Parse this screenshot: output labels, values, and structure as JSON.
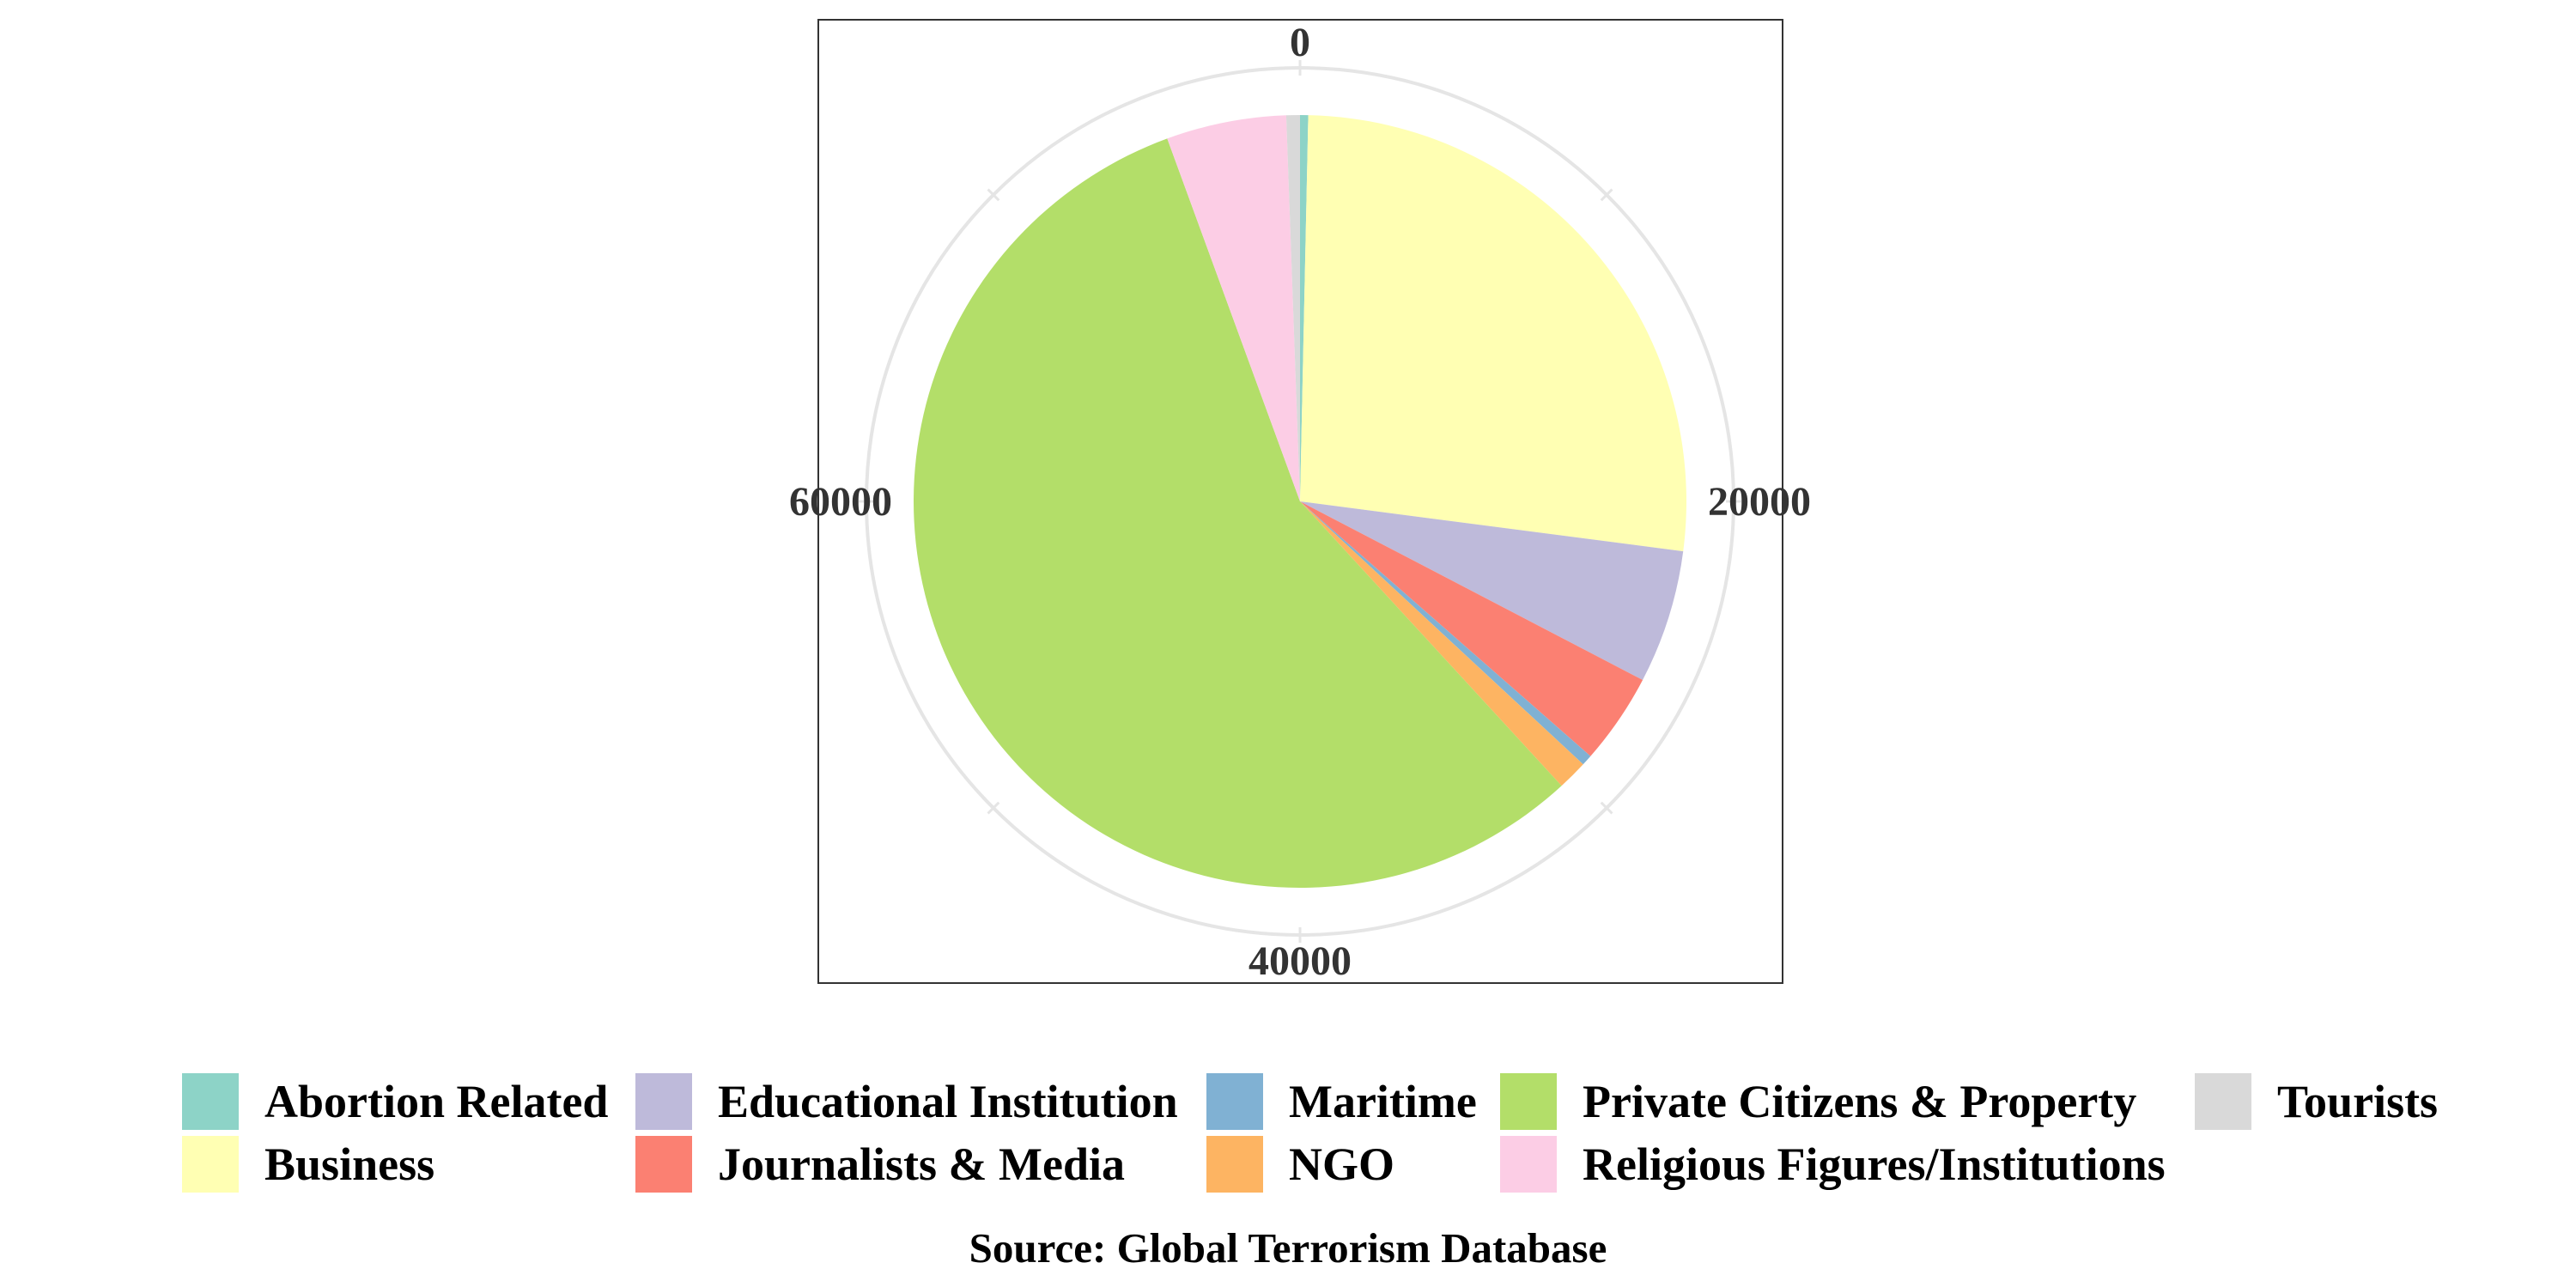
{
  "chart_data": {
    "type": "pie",
    "coord": "polar",
    "radial_axis": {
      "max": 80000,
      "ticks": [
        0,
        20000,
        40000,
        60000
      ]
    },
    "grid": true,
    "legend_position": "bottom",
    "categories": [
      "Abortion Related",
      "Business",
      "Educational Institution",
      "Journalists & Media",
      "Maritime",
      "NGO",
      "Private Citizens & Property",
      "Religious Figures/Institutions",
      "Tourists"
    ],
    "values": [
      263,
      20669,
      4322,
      2948,
      351,
      970,
      43511,
      3880,
      440
    ],
    "colors": [
      "#8DD3C7",
      "#FFFFB3",
      "#BEBADA",
      "#FB8072",
      "#80B1D3",
      "#FDB462",
      "#B3DE69",
      "#FCCDE5",
      "#D9D9D9"
    ],
    "caption": "Source: Global Terrorism Database"
  }
}
